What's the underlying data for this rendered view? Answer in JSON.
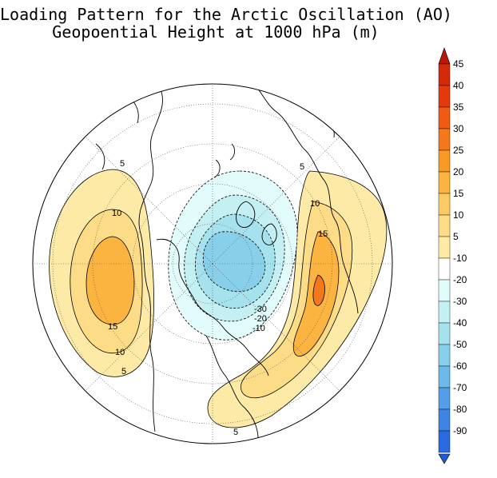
{
  "title": {
    "line1": "Loading Pattern for the Arctic Oscillation (AO)",
    "line2": "Geopoential Height at 1000 hPa (m)"
  },
  "colorbar": {
    "levels": [
      {
        "label": "45",
        "color": "#d42a0a"
      },
      {
        "label": "40",
        "color": "#e5390b"
      },
      {
        "label": "35",
        "color": "#f05a12"
      },
      {
        "label": "30",
        "color": "#f4781a"
      },
      {
        "label": "25",
        "color": "#f89a24"
      },
      {
        "label": "20",
        "color": "#fbb440"
      },
      {
        "label": "15",
        "color": "#fcca64"
      },
      {
        "label": "10",
        "color": "#fddc88"
      },
      {
        "label": "5",
        "color": "#fdeaa6"
      },
      {
        "label": "-10",
        "color": "#ffffff"
      },
      {
        "label": "-20",
        "color": "#e2fbfb"
      },
      {
        "label": "-30",
        "color": "#c4f0f4"
      },
      {
        "label": "-40",
        "color": "#a6e2ee"
      },
      {
        "label": "-50",
        "color": "#88d0ea"
      },
      {
        "label": "-60",
        "color": "#6cbaea"
      },
      {
        "label": "-70",
        "color": "#549ee8"
      },
      {
        "label": "-80",
        "color": "#3e84e4"
      },
      {
        "label": "-90",
        "color": "#2a6ae0"
      }
    ],
    "top_triangle_color": "#b81a0a",
    "bottom_triangle_color": "#1e5ad8"
  },
  "contour_labels": {
    "pacific": [
      "5",
      "10",
      "15",
      "10",
      "5"
    ],
    "atlantic": [
      "5",
      "10",
      "15",
      "5"
    ],
    "arctic": [
      "-30",
      "-20",
      "-10"
    ]
  }
}
